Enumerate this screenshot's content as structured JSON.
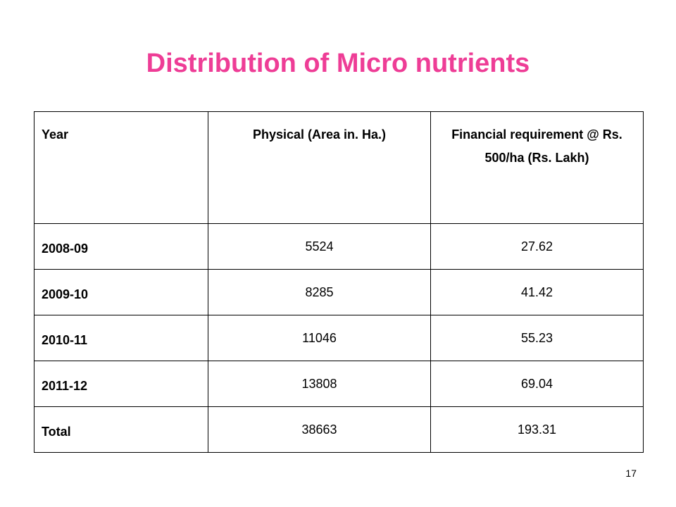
{
  "slide": {
    "title": "Distribution of Micro nutrients",
    "title_color": "#ee3d96",
    "page_number": "17"
  },
  "table": {
    "headers": {
      "year": "Year",
      "physical": "Physical (Area in. Ha.)",
      "financial": "Financial requirement @ Rs. 500/ha (Rs. Lakh)"
    },
    "rows": [
      {
        "year": "2008-09",
        "physical": "5524",
        "financial": "27.62"
      },
      {
        "year": "2009-10",
        "physical": "8285",
        "financial": "41.42"
      },
      {
        "year": "2010-11",
        "physical": "11046",
        "financial": "55.23"
      },
      {
        "year": "2011-12",
        "physical": "13808",
        "financial": "69.04"
      },
      {
        "year": "Total",
        "physical": "38663",
        "financial": "193.31"
      }
    ]
  }
}
